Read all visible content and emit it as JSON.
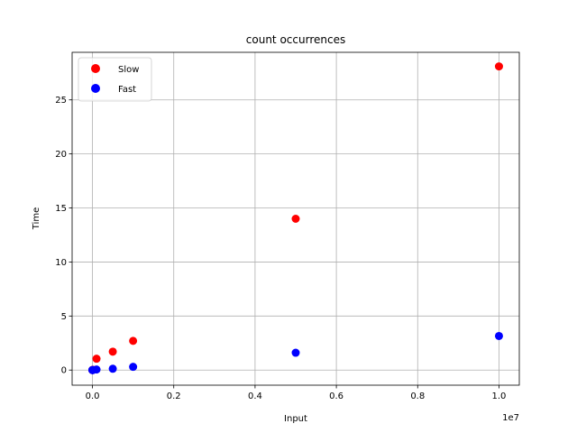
{
  "chart_data": {
    "type": "scatter",
    "title": "count occurrences",
    "xlabel": "Input",
    "ylabel": "Time",
    "x_offset_label": "1e7",
    "xlim": [
      -500000,
      10500000
    ],
    "ylim": [
      -1.4,
      29.4
    ],
    "x_ticks": [
      0,
      2000000,
      4000000,
      6000000,
      8000000,
      10000000
    ],
    "x_tick_labels": [
      "0.0",
      "0.2",
      "0.4",
      "0.6",
      "0.8",
      "1.0"
    ],
    "y_ticks": [
      0,
      5,
      10,
      15,
      20,
      25
    ],
    "y_tick_labels": [
      "0",
      "5",
      "10",
      "15",
      "20",
      "25"
    ],
    "grid": true,
    "legend_position": "upper-left",
    "series": [
      {
        "name": "Slow",
        "color": "#ff0000",
        "x": [
          10,
          100,
          1000,
          10000,
          100000,
          500000,
          1000000,
          5000000,
          10000000
        ],
        "y": [
          0.0,
          0.0,
          0.0,
          0.03,
          1.05,
          1.7,
          2.7,
          14.0,
          28.1
        ]
      },
      {
        "name": "Fast",
        "color": "#0000ff",
        "x": [
          10,
          100,
          1000,
          10000,
          100000,
          500000,
          1000000,
          5000000,
          10000000
        ],
        "y": [
          0.0,
          0.0,
          0.0,
          0.0,
          0.05,
          0.12,
          0.3,
          1.6,
          3.15
        ]
      }
    ]
  }
}
